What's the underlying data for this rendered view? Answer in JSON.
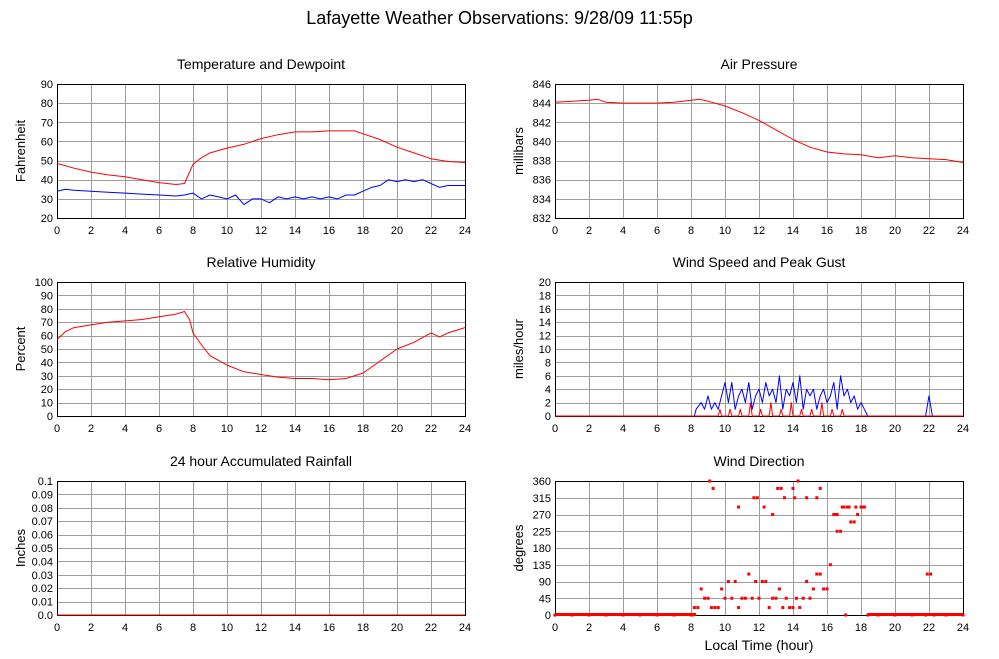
{
  "page": {
    "title": "Lafayette Weather Observations: 9/28/09 11:55p"
  },
  "colors": {
    "primary": "#ff0000",
    "secondary": "#0000ff",
    "grid": "#9e9e9e",
    "frame": "#000000"
  },
  "chart_data": [
    {
      "id": "temperature",
      "type": "line",
      "title": "Temperature and Dewpoint",
      "ylabel": "Fahrenheit",
      "xlabel": "",
      "xlim": [
        0,
        24
      ],
      "ylim": [
        20,
        90
      ],
      "xticks": [
        "0",
        "2",
        "4",
        "6",
        "8",
        "10",
        "12",
        "14",
        "16",
        "18",
        "20",
        "22",
        "24"
      ],
      "yticks": [
        "20",
        "30",
        "40",
        "50",
        "60",
        "70",
        "80",
        "90"
      ],
      "grid": true,
      "series": [
        {
          "color": "#ff0000",
          "x": [
            0,
            1,
            2,
            3,
            4,
            5,
            6,
            7,
            7.5,
            7.8,
            8,
            8.5,
            9,
            10,
            11,
            12,
            13,
            14,
            15,
            16,
            17,
            17.5,
            18,
            19,
            20,
            21,
            22,
            23,
            24
          ],
          "y": [
            48.5,
            46,
            44,
            42.5,
            41.5,
            40,
            38.5,
            37.5,
            38,
            44,
            48,
            51.5,
            54,
            56.5,
            58.5,
            61.5,
            63.5,
            65,
            65,
            65.5,
            65.5,
            65.5,
            64,
            61,
            57,
            54,
            51,
            49.5,
            49
          ]
        },
        {
          "color": "#0000ff",
          "x": [
            0,
            0.5,
            1,
            2,
            3,
            4,
            5,
            6,
            7,
            7.5,
            8,
            8.5,
            9,
            9.5,
            10,
            10.5,
            11,
            11.5,
            12,
            12.5,
            13,
            13.5,
            14,
            14.5,
            15,
            15.5,
            16,
            16.5,
            17,
            17.5,
            18,
            18.5,
            19,
            19.5,
            20,
            20.5,
            21,
            21.5,
            22,
            22.5,
            23,
            24
          ],
          "y": [
            34,
            35,
            34.5,
            34,
            33.5,
            33,
            32.5,
            32,
            31.5,
            32,
            33,
            30,
            32,
            31,
            30,
            32,
            27,
            30,
            30,
            28,
            31,
            30,
            31,
            30,
            31,
            30,
            31,
            30,
            32,
            32,
            34,
            36,
            37,
            40,
            39,
            40,
            39,
            40,
            38,
            36,
            37,
            37
          ]
        }
      ]
    },
    {
      "id": "pressure",
      "type": "line",
      "title": "Air Pressure",
      "ylabel": "millibars",
      "xlabel": "",
      "xlim": [
        0,
        24
      ],
      "ylim": [
        832,
        846
      ],
      "xticks": [
        "0",
        "2",
        "4",
        "6",
        "8",
        "10",
        "12",
        "14",
        "16",
        "18",
        "20",
        "22",
        "24"
      ],
      "yticks": [
        "832",
        "834",
        "836",
        "838",
        "840",
        "842",
        "844",
        "846"
      ],
      "grid": true,
      "series": [
        {
          "color": "#ff0000",
          "x": [
            0,
            1,
            2,
            2.5,
            3,
            4,
            5,
            6,
            7,
            8,
            8.5,
            9,
            10,
            11,
            12,
            13,
            14,
            15,
            16,
            17,
            18,
            19,
            20,
            21,
            22,
            23,
            24
          ],
          "y": [
            844.1,
            844.2,
            844.3,
            844.4,
            844.1,
            844.0,
            844.0,
            844.0,
            844.1,
            844.3,
            844.4,
            844.2,
            843.7,
            843.0,
            842.2,
            841.2,
            840.2,
            839.4,
            838.9,
            838.7,
            838.6,
            838.3,
            838.5,
            838.3,
            838.2,
            838.1,
            837.8
          ]
        }
      ]
    },
    {
      "id": "humidity",
      "type": "line",
      "title": "Relative Humidity",
      "ylabel": "Percent",
      "xlabel": "",
      "xlim": [
        0,
        24
      ],
      "ylim": [
        0,
        100
      ],
      "xticks": [
        "0",
        "2",
        "4",
        "6",
        "8",
        "10",
        "12",
        "14",
        "16",
        "18",
        "20",
        "22",
        "24"
      ],
      "yticks": [
        "0",
        "10",
        "20",
        "30",
        "40",
        "50",
        "60",
        "70",
        "80",
        "90",
        "100"
      ],
      "grid": true,
      "series": [
        {
          "color": "#ff0000",
          "x": [
            0,
            0.5,
            1,
            2,
            3,
            4,
            5,
            6,
            7,
            7.5,
            7.8,
            8,
            8.5,
            9,
            10,
            11,
            12,
            13,
            14,
            15,
            16,
            17,
            18,
            19,
            20,
            21,
            22,
            22.5,
            23,
            24
          ],
          "y": [
            57,
            63,
            66,
            68,
            70,
            71,
            72,
            74,
            76,
            78,
            72,
            62,
            53,
            45,
            38,
            33,
            31,
            29,
            28,
            28,
            27,
            28,
            32,
            41,
            50,
            55,
            62,
            59,
            62,
            66
          ]
        }
      ]
    },
    {
      "id": "wind",
      "type": "line",
      "title": "Wind Speed and Peak Gust",
      "ylabel": "miles/hour",
      "xlabel": "",
      "xlim": [
        0,
        24
      ],
      "ylim": [
        0,
        20
      ],
      "xticks": [
        "0",
        "2",
        "4",
        "6",
        "8",
        "10",
        "12",
        "14",
        "16",
        "18",
        "20",
        "22",
        "24"
      ],
      "yticks": [
        "0",
        "2",
        "4",
        "6",
        "8",
        "10",
        "12",
        "14",
        "16",
        "18",
        "20"
      ],
      "grid": true,
      "series": [
        {
          "color": "#0000ff",
          "x": [
            0,
            8.2,
            8.3,
            8.6,
            8.8,
            9,
            9.2,
            9.4,
            9.6,
            9.8,
            10,
            10.2,
            10.4,
            10.6,
            10.8,
            11,
            11.2,
            11.4,
            11.6,
            11.8,
            12,
            12.2,
            12.4,
            12.6,
            12.8,
            13,
            13.2,
            13.4,
            13.6,
            13.8,
            14,
            14.2,
            14.4,
            14.6,
            14.8,
            15,
            15.2,
            15.4,
            15.6,
            15.8,
            16,
            16.2,
            16.4,
            16.6,
            16.8,
            17,
            17.2,
            17.4,
            17.6,
            17.8,
            18,
            18.2,
            18.4,
            21.8,
            22,
            22.2,
            24
          ],
          "y": [
            0,
            0,
            1,
            2,
            1,
            3,
            1,
            2,
            1,
            3,
            5,
            2,
            5,
            1,
            3,
            4,
            2,
            5,
            1,
            3,
            4,
            2,
            5,
            3,
            4,
            2,
            6,
            1,
            4,
            3,
            5,
            2,
            6,
            1,
            4,
            3,
            4,
            1,
            3,
            4,
            2,
            3,
            5,
            1,
            6,
            3,
            4,
            2,
            3,
            1,
            2,
            1,
            0,
            0,
            3,
            0,
            0
          ]
        },
        {
          "color": "#ff0000",
          "x": [
            0,
            9.6,
            9.7,
            9.8,
            10.2,
            10.3,
            10.4,
            10.8,
            10.9,
            11,
            11.4,
            11.5,
            11.6,
            12,
            12.1,
            12.2,
            12.6,
            12.7,
            12.8,
            13.2,
            13.3,
            13.4,
            13.8,
            13.9,
            14,
            14.4,
            14.5,
            14.6,
            15,
            15.1,
            15.2,
            15.6,
            15.7,
            15.8,
            16.2,
            16.3,
            16.4,
            16.8,
            16.9,
            17,
            24
          ],
          "y": [
            0,
            0,
            1,
            0,
            0,
            1,
            0,
            0,
            1,
            0,
            0,
            2,
            0,
            0,
            1,
            0,
            0,
            2,
            0,
            0,
            1,
            0,
            0,
            2,
            0,
            0,
            1,
            0,
            0,
            1,
            0,
            0,
            2,
            0,
            0,
            1,
            0,
            0,
            1,
            0,
            0
          ]
        }
      ]
    },
    {
      "id": "rain",
      "type": "line",
      "title": "24 hour Accumulated Rainfall",
      "ylabel": "Inches",
      "xlabel": "",
      "xlim": [
        0,
        24
      ],
      "ylim": [
        0,
        0.1
      ],
      "xticks": [
        "0",
        "2",
        "4",
        "6",
        "8",
        "10",
        "12",
        "14",
        "16",
        "18",
        "20",
        "22",
        "24"
      ],
      "yticks": [
        "0.0",
        "0.01",
        "0.02",
        "0.03",
        "0.04",
        "0.05",
        "0.06",
        "0.07",
        "0.08",
        "0.09",
        "0.1"
      ],
      "grid": true,
      "series": [
        {
          "color": "#ff0000",
          "x": [
            0,
            24
          ],
          "y": [
            0,
            0
          ]
        }
      ]
    },
    {
      "id": "direction",
      "type": "scatter",
      "title": "Wind Direction",
      "ylabel": "degrees",
      "xlabel": "Local Time (hour)",
      "xlim": [
        0,
        24
      ],
      "ylim": [
        0,
        360
      ],
      "xticks": [
        "0",
        "2",
        "4",
        "6",
        "8",
        "10",
        "12",
        "14",
        "16",
        "18",
        "20",
        "22",
        "24"
      ],
      "yticks": [
        "0",
        "45",
        "90",
        "135",
        "180",
        "225",
        "270",
        "315",
        "360"
      ],
      "grid": true,
      "series": [
        {
          "color": "#ff0000",
          "x": [
            8.2,
            8.4,
            8.6,
            8.8,
            9.0,
            9.2,
            9.4,
            9.6,
            9.8,
            10.0,
            10.2,
            10.4,
            10.6,
            10.8,
            11.0,
            11.2,
            11.4,
            11.6,
            11.8,
            12.0,
            12.2,
            12.4,
            12.6,
            12.8,
            13.0,
            13.2,
            13.4,
            13.6,
            13.8,
            14.0,
            14.2,
            14.4,
            14.6,
            14.8,
            15.0,
            15.2,
            15.4,
            15.6,
            15.8,
            16.0,
            16.2,
            16.4,
            16.6,
            16.8,
            17.0,
            17.2,
            17.4,
            17.6,
            17.8,
            18.0,
            18.2,
            9.1,
            9.3,
            10.8,
            11.7,
            12.3,
            13.1,
            13.5,
            14.1,
            14.3,
            15.6,
            16.6,
            16.9,
            17.3,
            17.7,
            18.1,
            11.9,
            12.8,
            13.3,
            14.0,
            14.8,
            15.4,
            16.5,
            21.9,
            22.1,
            17.1
          ],
          "y": [
            20,
            20,
            70,
            45,
            45,
            20,
            20,
            20,
            70,
            45,
            90,
            45,
            90,
            20,
            45,
            45,
            110,
            45,
            90,
            45,
            90,
            90,
            20,
            45,
            45,
            70,
            20,
            45,
            20,
            20,
            45,
            20,
            45,
            90,
            45,
            70,
            110,
            110,
            70,
            70,
            135,
            270,
            225,
            225,
            290,
            290,
            250,
            250,
            270,
            290,
            290,
            360,
            340,
            290,
            315,
            290,
            340,
            315,
            315,
            360,
            340,
            270,
            290,
            290,
            290,
            290,
            315,
            270,
            340,
            340,
            315,
            315,
            270,
            110,
            110,
            0
          ]
        },
        {
          "color": "#ff0000",
          "x": [
            0,
            1,
            2,
            3,
            4,
            5,
            6,
            7,
            8,
            8.1,
            18.4,
            19,
            20,
            21,
            21.8,
            22.3,
            23,
            24
          ],
          "y": [
            0,
            0,
            0,
            0,
            0,
            0,
            0,
            0,
            0,
            0,
            0,
            0,
            0,
            0,
            0,
            0,
            0,
            0
          ]
        }
      ]
    }
  ]
}
